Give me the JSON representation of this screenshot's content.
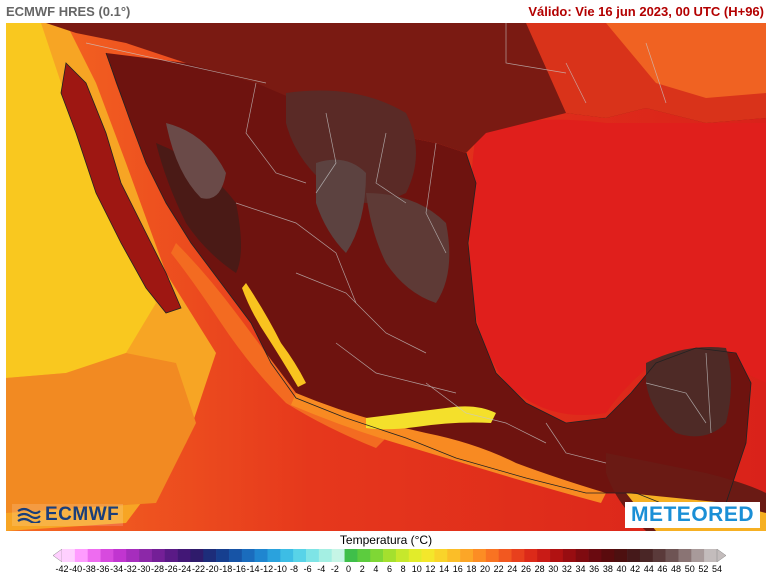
{
  "header": {
    "model": "ECMWF HRES (0.1°)",
    "valid": "Válido: Vie 16 jun 2023, 00 UTC (H+96)"
  },
  "map": {
    "region": "Mexico",
    "variable_theme": "temperature",
    "logos": {
      "left": "ECMWF",
      "right": "METEORED"
    }
  },
  "legend": {
    "title": "Temperatura (°C)",
    "ticks": [
      -42,
      -40,
      -38,
      -36,
      -34,
      -32,
      -30,
      -28,
      -26,
      -24,
      -22,
      -20,
      -18,
      -16,
      -14,
      -12,
      -10,
      -8,
      -6,
      -4,
      -2,
      0,
      2,
      4,
      6,
      8,
      10,
      12,
      14,
      16,
      18,
      20,
      22,
      24,
      26,
      28,
      30,
      32,
      34,
      36,
      38,
      40,
      42,
      44,
      46,
      48,
      50,
      52,
      54
    ],
    "colors": [
      "#ffd0ff",
      "#ff9cff",
      "#ee6cf0",
      "#d74ade",
      "#c135d0",
      "#a62dbd",
      "#8c28a8",
      "#741f97",
      "#5a1a86",
      "#421776",
      "#2f1b6b",
      "#1d2d7a",
      "#163f8f",
      "#1754a6",
      "#1a6cbd",
      "#1f86d0",
      "#2aa2dd",
      "#3dbde5",
      "#58d3e8",
      "#7ee4e6",
      "#a4efe3",
      "#c6f5e6",
      "#3fbf4a",
      "#5ccc3e",
      "#7fd735",
      "#a4e02e",
      "#c6e82c",
      "#e2ec2a",
      "#f4e72b",
      "#f9d42a",
      "#fbbe28",
      "#fca627",
      "#fc8d24",
      "#f97322",
      "#f25820",
      "#e8401d",
      "#dc2a19",
      "#c91b16",
      "#b11212",
      "#980d11",
      "#7f0b10",
      "#6a0a10",
      "#5a0b0d",
      "#4d1010",
      "#45191a",
      "#4a2626",
      "#5a3a3a",
      "#6e5454",
      "#8a7474",
      "#a89a9a",
      "#c3bcbc"
    ]
  }
}
